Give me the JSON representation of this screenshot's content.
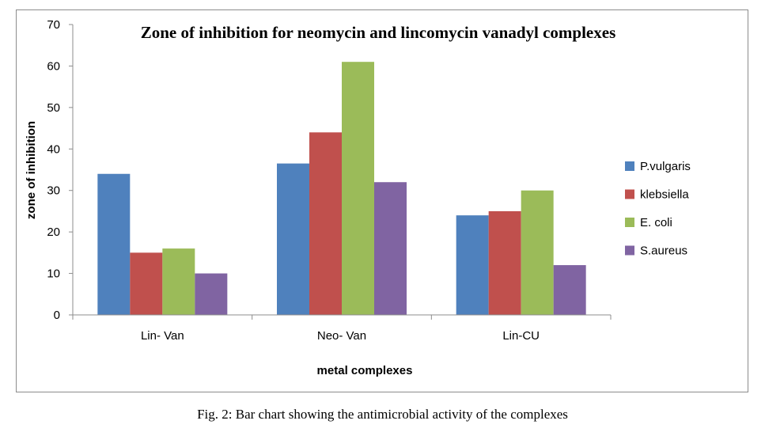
{
  "caption": "Fig. 2: Bar chart showing the antimicrobial activity of the complexes",
  "chart_data": {
    "type": "bar",
    "title": "Zone of inhibition  for neomycin  and lincomycin  vanadyl complexes",
    "xlabel": "metal complexes",
    "ylabel": "zone of inhibition",
    "categories": [
      "Lin- Van",
      "Neo- Van",
      "Lin-CU"
    ],
    "ylim": [
      0,
      70
    ],
    "yticks": [
      0,
      10,
      20,
      30,
      40,
      50,
      60,
      70
    ],
    "grid": false,
    "legend_position": "right",
    "series": [
      {
        "name": "P.vulgaris",
        "color": "#4f81bd",
        "values": [
          34,
          36.5,
          24
        ]
      },
      {
        "name": "klebsiella",
        "color": "#c0504d",
        "values": [
          15,
          44,
          25
        ]
      },
      {
        "name": "E. coli",
        "color": "#9bbb59",
        "values": [
          16,
          61,
          30
        ]
      },
      {
        "name": "S.aureus",
        "color": "#8064a2",
        "values": [
          10,
          32,
          12
        ]
      }
    ]
  }
}
